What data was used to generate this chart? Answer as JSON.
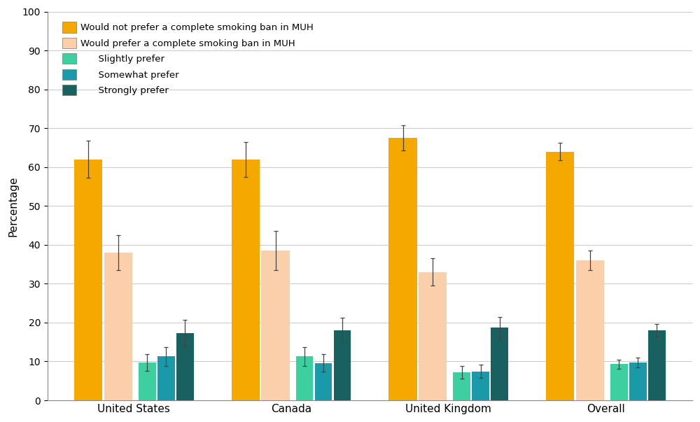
{
  "categories": [
    "United States",
    "Canada",
    "United Kingdom",
    "Overall"
  ],
  "series": {
    "would_not_prefer": {
      "values": [
        62.0,
        62.0,
        67.5,
        64.0
      ],
      "errors": [
        4.8,
        4.5,
        3.2,
        2.3
      ],
      "color": "#F5A800",
      "label": "Would not prefer a complete smoking ban in MUH",
      "bar_width": 0.18
    },
    "would_prefer": {
      "values": [
        38.0,
        38.5,
        33.0,
        36.0
      ],
      "errors": [
        4.5,
        5.0,
        3.5,
        2.5
      ],
      "color": "#FBCFAA",
      "label": "Would prefer a complete smoking ban in MUH",
      "bar_width": 0.18
    },
    "slightly_prefer": {
      "values": [
        9.7,
        11.3,
        7.2,
        9.3
      ],
      "errors": [
        2.2,
        2.4,
        1.7,
        1.2
      ],
      "color": "#3ECFA0",
      "label": "Slightly prefer",
      "bar_width": 0.11
    },
    "somewhat_prefer": {
      "values": [
        11.3,
        9.6,
        7.4,
        9.7
      ],
      "errors": [
        2.4,
        2.2,
        1.7,
        1.2
      ],
      "color": "#1A9AA8",
      "label": "Somewhat prefer",
      "bar_width": 0.11
    },
    "strongly_prefer": {
      "values": [
        17.3,
        18.0,
        18.7,
        18.0
      ],
      "errors": [
        3.4,
        3.3,
        2.8,
        1.6
      ],
      "color": "#196060",
      "label": "Strongly prefer",
      "bar_width": 0.11
    }
  },
  "ylabel": "Percentage",
  "ylim": [
    0,
    100
  ],
  "yticks": [
    0,
    10,
    20,
    30,
    40,
    50,
    60,
    70,
    80,
    90,
    100
  ],
  "background_color": "#FFFFFF",
  "grid_color": "#CCCCCC",
  "legend_indent_items": 2
}
